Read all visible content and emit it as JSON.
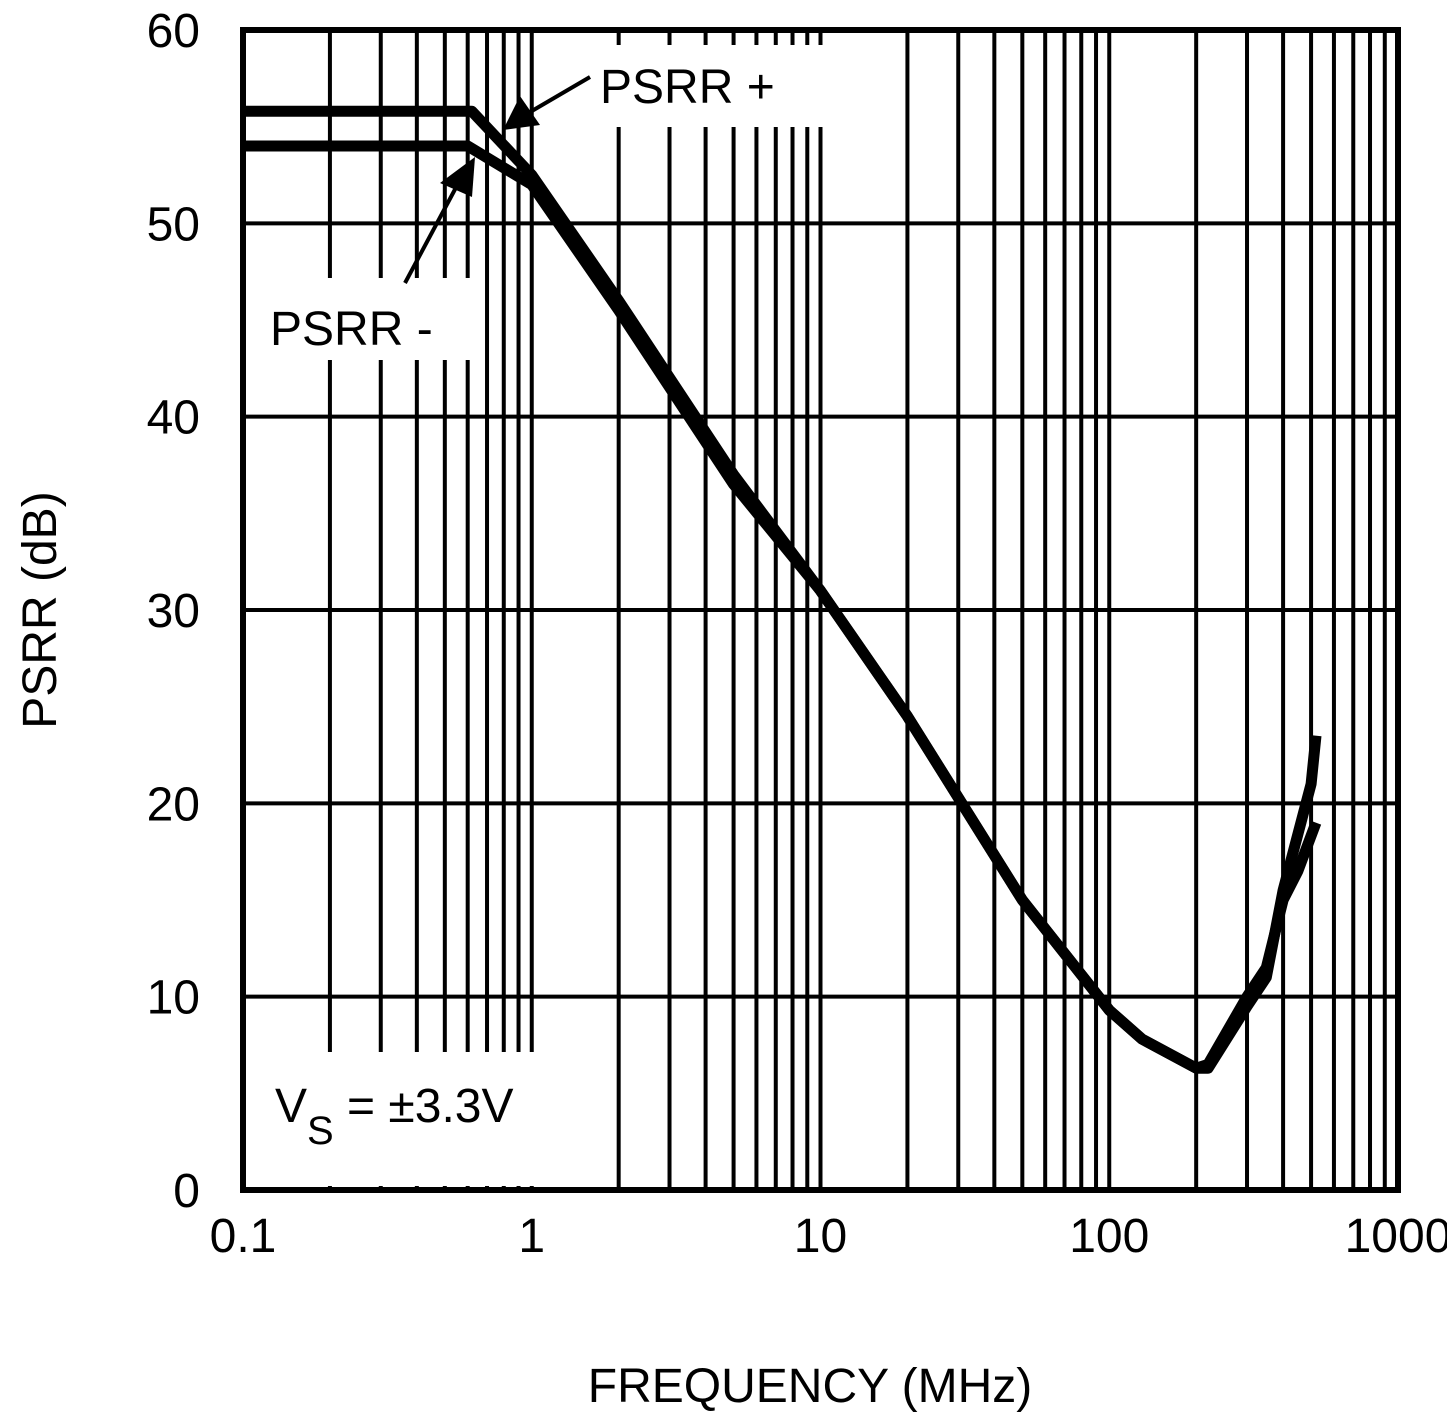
{
  "chart_data": {
    "type": "line",
    "xlabel": "FREQUENCY (MHz)",
    "ylabel": "PSRR (dB)",
    "x_scale": "log",
    "xlim": [
      0.1,
      1000
    ],
    "ylim": [
      0,
      60
    ],
    "x_ticks": [
      "0.1",
      "1",
      "10",
      "100",
      "1000"
    ],
    "y_ticks": [
      "0",
      "10",
      "20",
      "30",
      "40",
      "50",
      "60"
    ],
    "grid": true,
    "line_color": "#000000",
    "annotation": {
      "main": "V",
      "subscript": "S",
      "rest": " = ±3.3V"
    },
    "series": [
      {
        "name": "PSRR +",
        "x": [
          0.1,
          0.62,
          1,
          2,
          5,
          10,
          20,
          50,
          100,
          130,
          200,
          220,
          300,
          350,
          400,
          500,
          520
        ],
        "y": [
          55.8,
          55.8,
          52.5,
          46,
          37,
          31,
          24.5,
          15,
          9.3,
          7.8,
          6.3,
          6.3,
          9.5,
          11,
          15.5,
          21,
          23.5
        ]
      },
      {
        "name": "PSRR -",
        "x": [
          0.1,
          0.6,
          1,
          2,
          5,
          10,
          20,
          50,
          100,
          130,
          200,
          220,
          300,
          350,
          400,
          450,
          520
        ],
        "y": [
          54,
          54,
          52,
          45.5,
          36.5,
          31,
          24.5,
          15,
          9.3,
          7.8,
          6.3,
          6.5,
          10,
          11.5,
          15,
          16.5,
          19
        ]
      }
    ]
  }
}
